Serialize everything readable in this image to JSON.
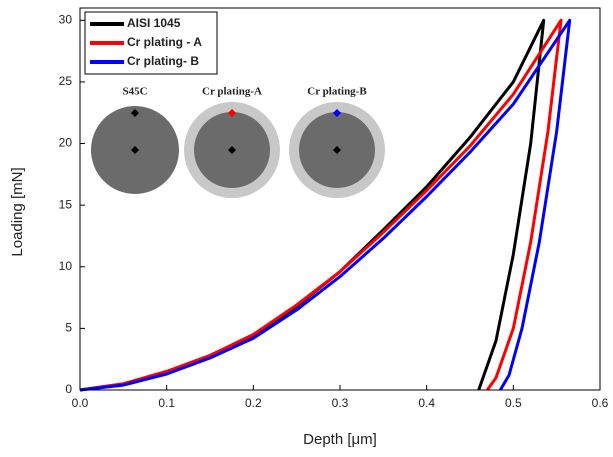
{
  "chart_data": {
    "type": "line",
    "x_label": "Depth [μm]",
    "y_label": "Loading [mN]",
    "xlim": [
      0,
      0.6
    ],
    "ylim": [
      0,
      31
    ],
    "xticks": [
      {
        "value": 0,
        "label": "0.0"
      },
      0.1,
      0.2,
      0.3,
      0.4,
      0.5,
      0.6
    ],
    "yticks": [
      0,
      5,
      10,
      15,
      20,
      25,
      30
    ],
    "legend": "upper left",
    "series": [
      {
        "name": "AISI 1045",
        "color": "#000000",
        "x": [
          0,
          0.05,
          0.1,
          0.15,
          0.2,
          0.25,
          0.3,
          0.35,
          0.4,
          0.45,
          0.5,
          0.535,
          0.52,
          0.5,
          0.48,
          0.465,
          0.46
        ],
        "values": [
          0,
          0.5,
          1.5,
          2.8,
          4.4,
          6.8,
          9.6,
          13,
          16.5,
          20.5,
          25,
          30,
          20,
          11,
          4,
          1,
          0
        ]
      },
      {
        "name": "Cr plating - A",
        "color": "#ff0000",
        "x": [
          0,
          0.05,
          0.1,
          0.15,
          0.2,
          0.25,
          0.3,
          0.35,
          0.4,
          0.45,
          0.5,
          0.555,
          0.54,
          0.52,
          0.5,
          0.48,
          0.47
        ],
        "values": [
          0,
          0.5,
          1.5,
          2.8,
          4.5,
          6.9,
          9.6,
          12.8,
          16.2,
          19.8,
          24,
          30,
          21,
          12,
          5,
          1,
          0
        ]
      },
      {
        "name": "Cr plating-  B",
        "color": "#0000ff",
        "x": [
          0,
          0.05,
          0.1,
          0.15,
          0.2,
          0.25,
          0.3,
          0.35,
          0.4,
          0.45,
          0.5,
          0.565,
          0.55,
          0.53,
          0.51,
          0.495,
          0.485
        ],
        "values": [
          0,
          0.4,
          1.3,
          2.6,
          4.2,
          6.5,
          9.2,
          12.3,
          15.7,
          19.3,
          23.2,
          30,
          21,
          12,
          5,
          1.2,
          0
        ]
      }
    ],
    "inset_labels": [
      "S45C",
      "Cr plating-A",
      "Cr plating-B"
    ]
  }
}
